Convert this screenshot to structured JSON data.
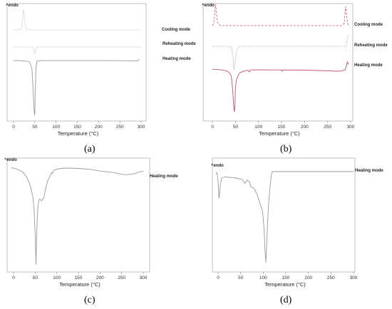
{
  "chart_data": [
    {
      "panel": "(a)",
      "type": "line",
      "xlabel": "Temperature (°C)",
      "endo_label": "^endo",
      "xlim": [
        0,
        300
      ],
      "xticks": [
        "0",
        "50",
        "100",
        "150",
        "200",
        "250",
        "300"
      ],
      "series": [
        {
          "name": "Cooling mode",
          "color": "#b0b0b0",
          "style": "dotted",
          "x": [
            0,
            15,
            20,
            22,
            23,
            25,
            27,
            30,
            35,
            45,
            60,
            100,
            150,
            200,
            250,
            300
          ],
          "y": [
            0,
            0,
            0.15,
            0.6,
            0.95,
            0.75,
            0.3,
            0.05,
            0,
            0,
            0,
            0,
            0,
            0,
            0,
            0
          ]
        },
        {
          "name": "Reheating mode",
          "color": "#b0b0b0",
          "style": "dotted",
          "x": [
            0,
            40,
            45,
            47,
            49,
            50,
            51,
            53,
            55,
            60,
            100,
            150,
            200,
            250,
            300
          ],
          "y": [
            0,
            0,
            -0.05,
            -0.3,
            -0.9,
            -1,
            -0.7,
            -0.2,
            -0.05,
            0,
            0,
            0,
            0,
            0,
            0
          ]
        },
        {
          "name": "Heating mode",
          "color": "#999999",
          "style": "solid",
          "x": [
            0,
            10,
            20,
            30,
            38,
            43,
            46,
            48,
            49,
            50,
            51,
            53,
            55,
            60,
            70,
            100,
            150,
            200,
            250,
            280,
            290,
            293,
            296
          ],
          "y": [
            0,
            -0.02,
            -0.05,
            -0.12,
            -0.3,
            -1.5,
            -5.5,
            -9.5,
            -10.5,
            -11,
            -6,
            -1.2,
            -0.15,
            -0.05,
            -0.02,
            -0.01,
            -0.01,
            -0.01,
            -0.03,
            -0.08,
            -0.1,
            0.05,
            0.25
          ]
        }
      ]
    },
    {
      "panel": "(b)",
      "type": "line",
      "xlabel": "Temperature (°C)",
      "endo_label": "^endo",
      "xlim": [
        0,
        300
      ],
      "xticks": [
        "0",
        "50",
        "100",
        "150",
        "200",
        "250",
        "300"
      ],
      "series": [
        {
          "name": "Cooling mode",
          "color": "#c0506a",
          "style": "dashed",
          "x": [
            0,
            3,
            5,
            7,
            9,
            11,
            14,
            18,
            25,
            40,
            60,
            100,
            150,
            200,
            250,
            280,
            286,
            289,
            291,
            293,
            295
          ],
          "y": [
            0,
            0.1,
            0.5,
            1,
            0.6,
            0.15,
            0.05,
            0,
            0,
            0,
            0,
            0,
            0,
            0,
            0,
            0,
            0.1,
            0.9,
            0.5,
            0.2,
            0
          ]
        },
        {
          "name": "Reheating mode",
          "color": "#999999",
          "style": "dotted",
          "x": [
            0,
            38,
            42,
            45,
            46,
            47,
            48,
            50,
            53,
            58,
            100,
            150,
            200,
            250,
            290,
            293,
            295
          ],
          "y": [
            0,
            0,
            -0.1,
            -0.5,
            -0.9,
            -1,
            -0.9,
            -0.5,
            -0.15,
            0,
            0,
            0,
            0,
            0,
            0,
            0.8,
            1.2
          ]
        },
        {
          "name": "Heating mode",
          "color": "#c0506a",
          "style": "solid",
          "x": [
            0,
            3,
            8,
            20,
            30,
            36,
            40,
            42,
            44,
            46,
            47,
            48,
            49,
            50,
            52,
            56,
            60,
            70,
            78,
            80,
            82,
            84,
            88,
            90,
            150,
            151,
            153,
            200,
            250,
            270,
            280,
            288,
            291,
            293,
            295
          ],
          "y": [
            0,
            -0.05,
            -0.1,
            -0.2,
            -0.4,
            -0.8,
            -1.3,
            -2.5,
            -5,
            -8,
            -9.5,
            -10,
            -8,
            -4.5,
            -2.5,
            -1.5,
            -0.8,
            -0.4,
            -0.3,
            -0.7,
            -0.35,
            -0.2,
            -0.2,
            -0.18,
            -0.2,
            -0.5,
            -0.2,
            -0.25,
            -0.4,
            -0.5,
            -0.45,
            -0.2,
            0.6,
            1.3,
            0.8
          ]
        }
      ]
    },
    {
      "panel": "(c)",
      "type": "line",
      "xlabel": "Temperature (°C)",
      "endo_label": "^endo",
      "xlim": [
        -5,
        300
      ],
      "xticks": [
        "0",
        "50",
        "100",
        "150",
        "200",
        "250",
        "300"
      ],
      "series": [
        {
          "name": "Heating mode",
          "color": "#999999",
          "style": "solid",
          "x": [
            -5,
            0,
            5,
            10,
            15,
            20,
            25,
            30,
            35,
            40,
            45,
            48,
            50,
            52,
            54,
            56,
            58,
            60,
            65,
            70,
            75,
            80,
            85,
            88,
            90,
            92,
            94,
            100,
            110,
            120,
            150,
            180,
            200,
            230,
            250,
            260,
            270,
            280,
            290,
            300
          ],
          "y": [
            0,
            0,
            -0.1,
            -0.2,
            -0.35,
            -0.5,
            -0.8,
            -1.2,
            -1.8,
            -2.7,
            -4,
            -6,
            -9,
            -13,
            -8,
            -5.5,
            -4.5,
            -4.2,
            -4.4,
            -4,
            -2.5,
            -1.6,
            -1,
            -0.6,
            -0.75,
            -0.45,
            -0.3,
            -0.15,
            -0.05,
            0,
            -0.05,
            -0.2,
            -0.4,
            -0.6,
            -0.85,
            -0.9,
            -0.85,
            -0.75,
            -0.55,
            -0.4
          ]
        }
      ]
    },
    {
      "panel": "(d)",
      "type": "line",
      "xlabel": "Temperature (°C)",
      "endo_label": "^endo",
      "xlim": [
        -5,
        300
      ],
      "xticks": [
        "0",
        "50",
        "100",
        "150",
        "200",
        "250",
        "300"
      ],
      "series": [
        {
          "name": "Heating mode",
          "color": "#999999",
          "style": "solid",
          "x": [
            -5,
            -2,
            0,
            2,
            3,
            5,
            8,
            15,
            30,
            40,
            50,
            55,
            57,
            60,
            62,
            65,
            70,
            72,
            80,
            85,
            90,
            95,
            98,
            100,
            102,
            104,
            106,
            108,
            110,
            112,
            115,
            118,
            120,
            122,
            130,
            150,
            200,
            250,
            300
          ],
          "y": [
            -0.2,
            -0.1,
            -1,
            -2.5,
            -2.2,
            -1.2,
            -0.6,
            -0.5,
            -0.55,
            -0.6,
            -0.7,
            -0.8,
            -1,
            -1.1,
            -0.9,
            -0.8,
            -1,
            -1.4,
            -1.6,
            -2,
            -2.6,
            -3.3,
            -3.6,
            -4.4,
            -5.5,
            -7.5,
            -8.5,
            -6.5,
            -4.5,
            -3,
            -1.5,
            -0.3,
            0,
            0,
            0,
            0,
            0,
            0,
            0
          ]
        }
      ]
    }
  ]
}
